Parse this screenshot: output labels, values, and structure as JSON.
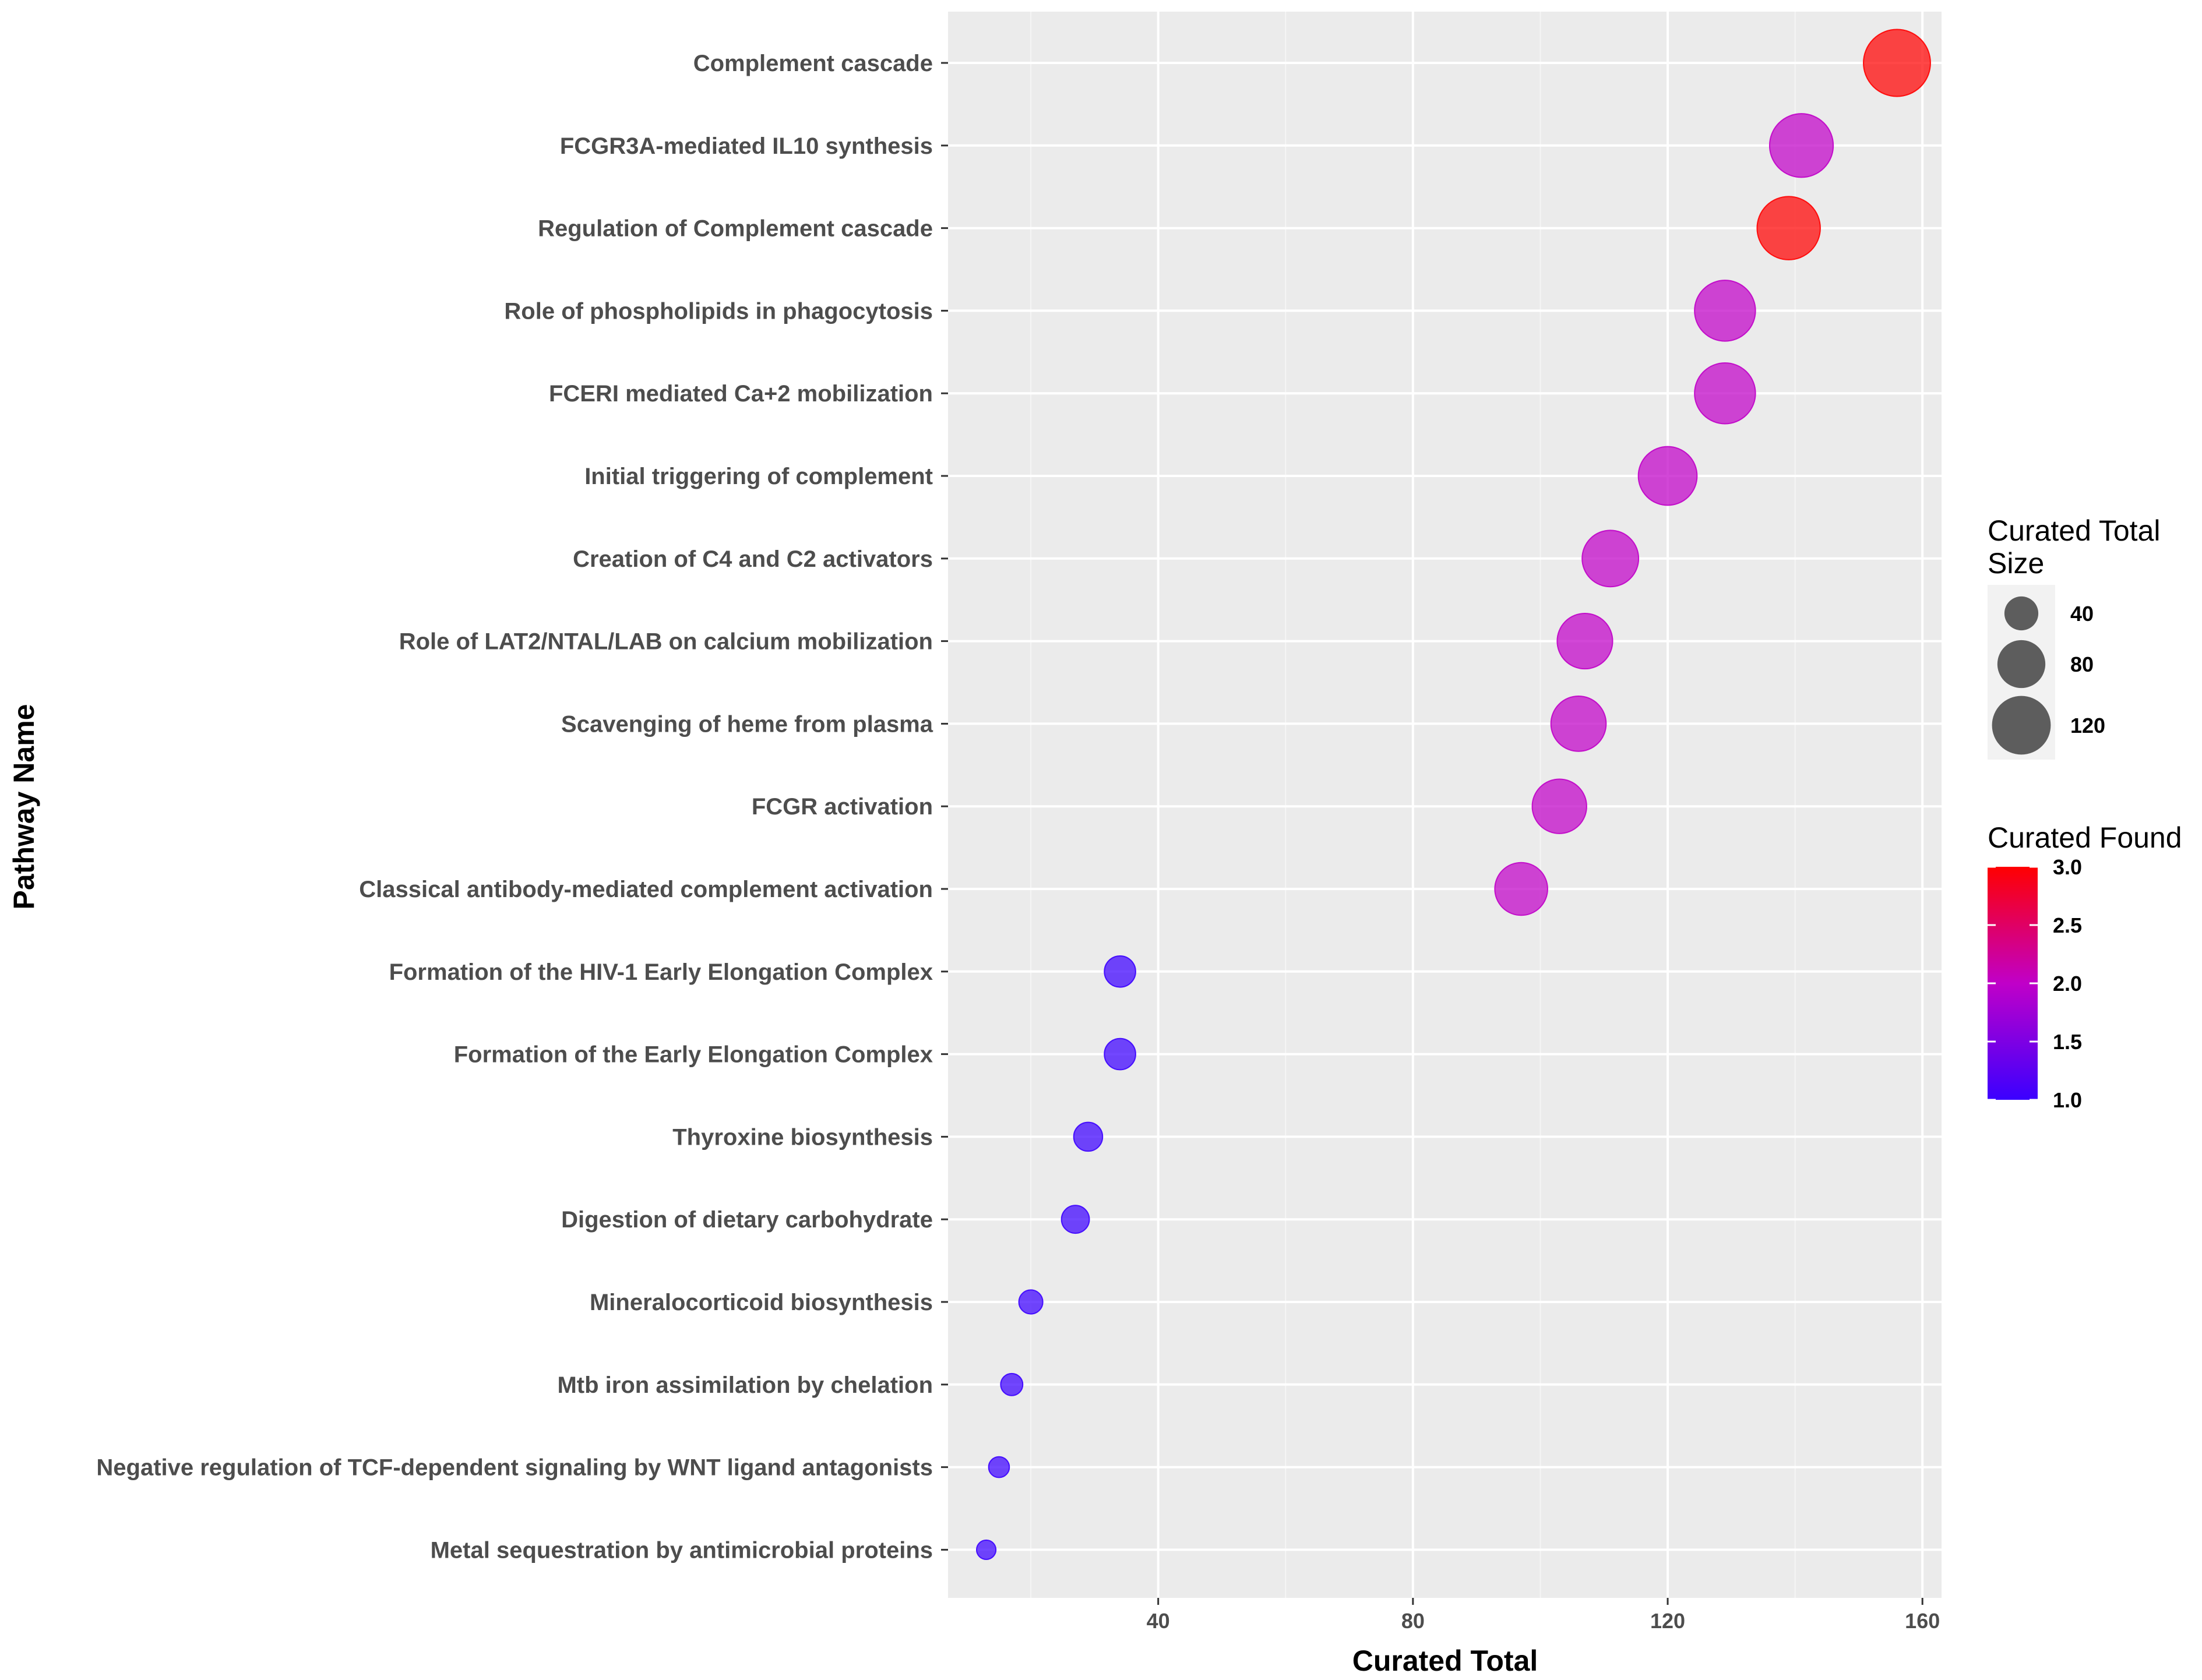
{
  "chart_data": {
    "type": "scatter",
    "title": "",
    "xlabel": "Curated Total",
    "ylabel": "Pathway Name",
    "xlim": [
      7,
      163
    ],
    "xticks": [
      40,
      80,
      120,
      160
    ],
    "grid": true,
    "colors": {
      "panel_bg": "#ebebeb",
      "grid_major": "#ffffff",
      "grid_minor": "#f5f5f5",
      "low": "#3b00ff",
      "mid": "#c000c8",
      "high": "#ff0000",
      "size_legend_point": "#4d4d4d"
    },
    "points": [
      {
        "name": "Complement cascade",
        "x": 156,
        "found": 3
      },
      {
        "name": "FCGR3A-mediated IL10 synthesis",
        "x": 141,
        "found": 2
      },
      {
        "name": "Regulation of Complement cascade",
        "x": 139,
        "found": 3
      },
      {
        "name": "Role of phospholipids in phagocytosis",
        "x": 129,
        "found": 2
      },
      {
        "name": "FCERI mediated Ca+2 mobilization",
        "x": 129,
        "found": 2
      },
      {
        "name": "Initial triggering of complement",
        "x": 120,
        "found": 2
      },
      {
        "name": "Creation of C4 and C2 activators",
        "x": 111,
        "found": 2
      },
      {
        "name": "Role of LAT2/NTAL/LAB on calcium mobilization",
        "x": 107,
        "found": 2
      },
      {
        "name": "Scavenging of heme from plasma",
        "x": 106,
        "found": 2
      },
      {
        "name": "FCGR activation",
        "x": 103,
        "found": 2
      },
      {
        "name": "Classical antibody-mediated complement activation",
        "x": 97,
        "found": 2
      },
      {
        "name": "Formation of the HIV-1 Early Elongation Complex",
        "x": 34,
        "found": 1
      },
      {
        "name": "Formation of the Early Elongation Complex",
        "x": 34,
        "found": 1
      },
      {
        "name": "Thyroxine biosynthesis",
        "x": 29,
        "found": 1
      },
      {
        "name": "Digestion of dietary carbohydrate",
        "x": 27,
        "found": 1
      },
      {
        "name": "Mineralocorticoid biosynthesis",
        "x": 20,
        "found": 1
      },
      {
        "name": "Mtb iron assimilation by chelation",
        "x": 17,
        "found": 1
      },
      {
        "name": "Negative regulation of TCF-dependent signaling by WNT ligand antagonists",
        "x": 15,
        "found": 1
      },
      {
        "name": "Metal sequestration by antimicrobial proteins",
        "x": 13,
        "found": 1
      }
    ],
    "legend_size": {
      "title_line1": "Curated Total",
      "title_line2": "Size",
      "entries": [
        {
          "label": "40",
          "value": 40
        },
        {
          "label": "80",
          "value": 80
        },
        {
          "label": "120",
          "value": 120
        }
      ]
    },
    "legend_color": {
      "title": "Curated Found",
      "range": [
        1.0,
        3.0
      ],
      "ticks": [
        {
          "label": "3.0",
          "value": 3.0
        },
        {
          "label": "2.5",
          "value": 2.5
        },
        {
          "label": "2.0",
          "value": 2.0
        },
        {
          "label": "1.5",
          "value": 1.5
        },
        {
          "label": "1.0",
          "value": 1.0
        }
      ]
    }
  }
}
